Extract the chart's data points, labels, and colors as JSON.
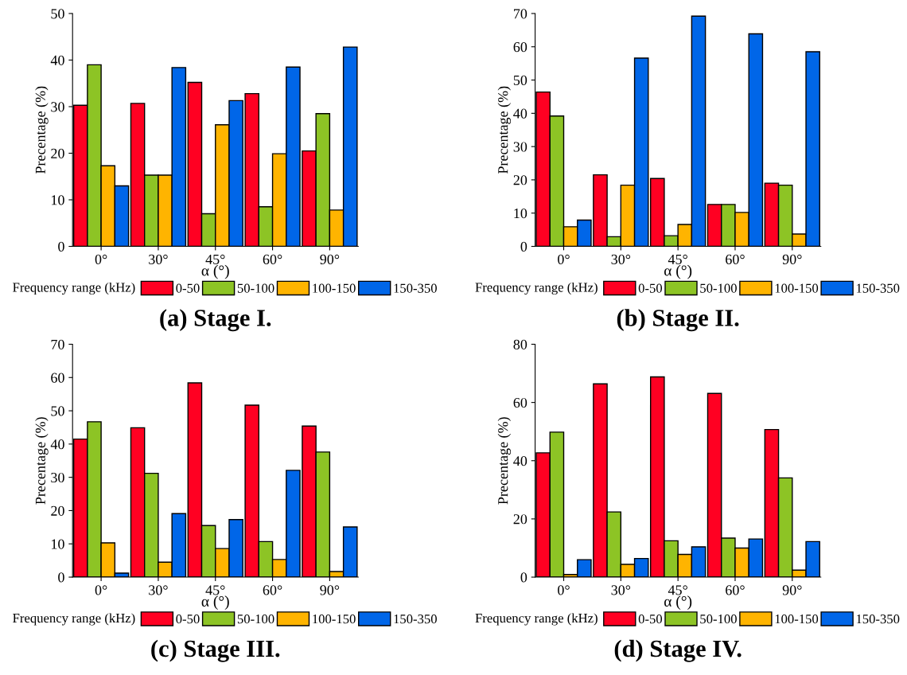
{
  "chart_data": [
    {
      "type": "bar",
      "title": "(a) Stage I.",
      "xlabel": "α (°)",
      "ylabel": "Precentage (%)",
      "legend_title": "Frequency range (kHz)",
      "legend": "bottom",
      "categories": [
        "0°",
        "30°",
        "45°",
        "60°",
        "90°"
      ],
      "ylim": [
        0,
        50
      ],
      "yticks": [
        0,
        10,
        20,
        30,
        40,
        50
      ],
      "series": [
        {
          "name": "0-50",
          "color": "#ff0022",
          "values": [
            30.3,
            30.7,
            35.2,
            32.8,
            20.5
          ]
        },
        {
          "name": "50-100",
          "color": "#8dc425",
          "values": [
            39.0,
            15.3,
            7.0,
            8.5,
            28.5
          ]
        },
        {
          "name": "100-150",
          "color": "#ffb400",
          "values": [
            17.3,
            15.3,
            26.1,
            19.9,
            7.8
          ]
        },
        {
          "name": "150-350",
          "color": "#0066e8",
          "values": [
            13.0,
            38.4,
            31.3,
            38.5,
            42.8
          ]
        }
      ]
    },
    {
      "type": "bar",
      "title": "(b) Stage II.",
      "xlabel": "α (°)",
      "ylabel": "Precentage (%)",
      "legend_title": "Frequency range (kHz)",
      "legend": "bottom",
      "categories": [
        "0°",
        "30°",
        "45°",
        "60°",
        "90°"
      ],
      "ylim": [
        0,
        70
      ],
      "yticks": [
        0,
        10,
        20,
        30,
        40,
        50,
        60,
        70
      ],
      "series": [
        {
          "name": "0-50",
          "color": "#ff0022",
          "values": [
            46.4,
            21.5,
            20.4,
            12.6,
            19.0
          ]
        },
        {
          "name": "50-100",
          "color": "#8dc425",
          "values": [
            39.2,
            2.9,
            3.2,
            12.6,
            18.4
          ]
        },
        {
          "name": "100-150",
          "color": "#ffb400",
          "values": [
            5.9,
            18.4,
            6.6,
            10.2,
            3.7
          ]
        },
        {
          "name": "150-350",
          "color": "#0066e8",
          "values": [
            7.9,
            56.6,
            69.2,
            63.9,
            58.5
          ]
        }
      ]
    },
    {
      "type": "bar",
      "title": "(c) Stage III.",
      "xlabel": "α (°)",
      "ylabel": "Precentage (%)",
      "legend_title": "Frequency range (kHz)",
      "legend": "bottom",
      "categories": [
        "0°",
        "30°",
        "45°",
        "60°",
        "90°"
      ],
      "ylim": [
        0,
        70
      ],
      "yticks": [
        0,
        10,
        20,
        30,
        40,
        50,
        60,
        70
      ],
      "series": [
        {
          "name": "0-50",
          "color": "#ff0022",
          "values": [
            41.5,
            44.9,
            58.4,
            51.7,
            45.4
          ]
        },
        {
          "name": "50-100",
          "color": "#8dc425",
          "values": [
            46.7,
            31.2,
            15.5,
            10.7,
            37.6
          ]
        },
        {
          "name": "100-150",
          "color": "#ffb400",
          "values": [
            10.3,
            4.5,
            8.6,
            5.3,
            1.7
          ]
        },
        {
          "name": "150-350",
          "color": "#0066e8",
          "values": [
            1.2,
            19.1,
            17.3,
            32.1,
            15.1
          ]
        }
      ]
    },
    {
      "type": "bar",
      "title": "(d) Stage IV.",
      "xlabel": "α (°)",
      "ylabel": "Precentage (%)",
      "legend_title": "Frequency range (kHz)",
      "legend": "bottom",
      "categories": [
        "0°",
        "30°",
        "45°",
        "60°",
        "90°"
      ],
      "ylim": [
        0,
        80
      ],
      "yticks": [
        0,
        20,
        40,
        60,
        80
      ],
      "series": [
        {
          "name": "0-50",
          "color": "#ff0022",
          "values": [
            42.7,
            66.4,
            68.8,
            63.1,
            50.7
          ]
        },
        {
          "name": "50-100",
          "color": "#8dc425",
          "values": [
            49.8,
            22.4,
            12.5,
            13.4,
            34.1
          ]
        },
        {
          "name": "100-150",
          "color": "#ffb400",
          "values": [
            0.9,
            4.4,
            7.8,
            10.0,
            2.4
          ]
        },
        {
          "name": "150-350",
          "color": "#0066e8",
          "values": [
            6.0,
            6.4,
            10.4,
            13.1,
            12.2
          ]
        }
      ]
    }
  ]
}
